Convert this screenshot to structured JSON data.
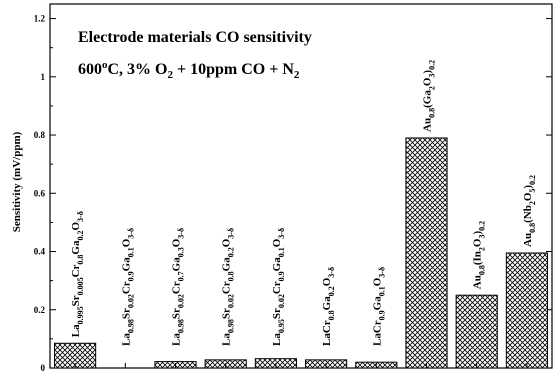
{
  "chart_data": {
    "type": "bar",
    "title_line1": "Electrode materials CO sensitivity",
    "title_line2": {
      "prefix": "600",
      "sup": "o",
      "after_sup": "C, 3% O",
      "sub": "2",
      "suffix": " + 10ppm CO + N",
      "sub2": "2"
    },
    "ylabel": "Sensitivity (mV/ppm)",
    "xlabel": "",
    "ylim": [
      0,
      1.25
    ],
    "yticks": [
      "0",
      "0.2",
      "0.4",
      "0.6",
      "0.8",
      "1",
      "1.2"
    ],
    "bar_fill": "crosshatch",
    "categories": [
      [
        [
          "La",
          ""
        ],
        [
          "0.995",
          "sub"
        ],
        [
          "Sr",
          ""
        ],
        [
          "0.005",
          "sub"
        ],
        [
          "Cr",
          ""
        ],
        [
          "0.8",
          "sub"
        ],
        [
          "Ga",
          ""
        ],
        [
          "0.2",
          "sub"
        ],
        [
          "O",
          ""
        ],
        [
          "3-δ",
          "sub"
        ]
      ],
      [
        [
          "La",
          ""
        ],
        [
          "0.98",
          "sub"
        ],
        [
          "Sr",
          ""
        ],
        [
          "0.02",
          "sub"
        ],
        [
          "Cr",
          ""
        ],
        [
          "0.9",
          "sub"
        ],
        [
          "Ga",
          ""
        ],
        [
          "0.1",
          "sub"
        ],
        [
          "O",
          ""
        ],
        [
          "3-δ",
          "sub"
        ]
      ],
      [
        [
          "La",
          ""
        ],
        [
          "0.98",
          "sub"
        ],
        [
          "Sr",
          ""
        ],
        [
          "0.02",
          "sub"
        ],
        [
          "Cr",
          ""
        ],
        [
          "0.7",
          "sub"
        ],
        [
          "Ga",
          ""
        ],
        [
          "0.3",
          "sub"
        ],
        [
          "O",
          ""
        ],
        [
          "3-δ",
          "sub"
        ]
      ],
      [
        [
          "La",
          ""
        ],
        [
          "0.98",
          "sub"
        ],
        [
          "Sr",
          ""
        ],
        [
          "0.02",
          "sub"
        ],
        [
          "Cr",
          ""
        ],
        [
          "0.8",
          "sub"
        ],
        [
          "Ga",
          ""
        ],
        [
          "0.2",
          "sub"
        ],
        [
          "O",
          ""
        ],
        [
          "3-δ",
          "sub"
        ]
      ],
      [
        [
          "La",
          ""
        ],
        [
          "0.95",
          "sub"
        ],
        [
          "Sr",
          ""
        ],
        [
          "0.02",
          "sub"
        ],
        [
          "Cr",
          ""
        ],
        [
          "0.9",
          "sub"
        ],
        [
          "Ga",
          ""
        ],
        [
          "0.1",
          "sub"
        ],
        [
          "O",
          ""
        ],
        [
          "3-δ",
          "sub"
        ]
      ],
      [
        [
          "LaCr",
          ""
        ],
        [
          "0.8",
          "sub"
        ],
        [
          "Ga",
          ""
        ],
        [
          "0.2",
          "sub"
        ],
        [
          "O",
          ""
        ],
        [
          "3-δ",
          "sub"
        ]
      ],
      [
        [
          "LaCr",
          ""
        ],
        [
          "0.9",
          "sub"
        ],
        [
          "Ga",
          ""
        ],
        [
          "0.1",
          "sub"
        ],
        [
          "O",
          ""
        ],
        [
          "3-δ",
          "sub"
        ]
      ],
      [
        [
          "Au",
          ""
        ],
        [
          "0.8",
          "sub"
        ],
        [
          "(Ga",
          ""
        ],
        [
          "2",
          "sub"
        ],
        [
          "O",
          ""
        ],
        [
          "3",
          "sub"
        ],
        [
          ")",
          ""
        ],
        [
          "0.2",
          "sub"
        ]
      ],
      [
        [
          "Au",
          ""
        ],
        [
          "0.8",
          "sub"
        ],
        [
          "(In",
          ""
        ],
        [
          "2",
          "sub"
        ],
        [
          "O",
          ""
        ],
        [
          "3",
          "sub"
        ],
        [
          ")",
          ""
        ],
        [
          "0.2",
          "sub"
        ]
      ],
      [
        [
          "Au",
          ""
        ],
        [
          "0.8",
          "sub"
        ],
        [
          "(Nb",
          ""
        ],
        [
          "2",
          "sub"
        ],
        [
          "O",
          ""
        ],
        [
          "5",
          "sub"
        ],
        [
          ")",
          ""
        ],
        [
          "0.2",
          "sub"
        ]
      ]
    ],
    "values": [
      0.085,
      0.0,
      0.022,
      0.028,
      0.032,
      0.028,
      0.02,
      0.79,
      0.25,
      0.395
    ],
    "grid": false,
    "legend": "none"
  }
}
